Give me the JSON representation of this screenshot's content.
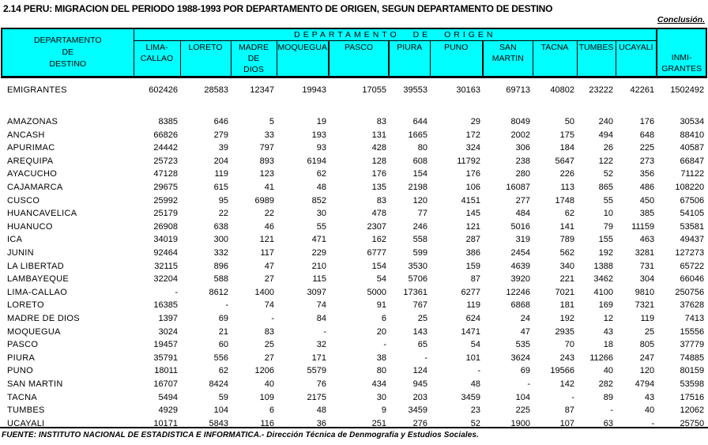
{
  "title": "2.14  PERU: MIGRACION DEL PERIODO 1988-1993 POR DEPARTAMENTO DE ORIGEN, SEGUN DEPARTAMENTO DE DESTINO",
  "continuation_note": "Conclusión.",
  "source_note": "FUENTE: INSTITUTO NACIONAL DE ESTADISTICA E INFORMATICA.- Dirección Técnica de Denmografia y Estudios Sociales.",
  "table": {
    "destination_header": [
      "DEPARTAMENTO",
      "DE",
      "DESTINO"
    ],
    "origin_group_label": "DEPARTAMENTO DE ORIGEN",
    "origin_columns": [
      "LIMA-\nCALLAO",
      "LORETO",
      "MADRE DE\nDIOS",
      "MOQUEGUA",
      "PASCO",
      "PIURA",
      "PUNO",
      "SAN\nMARTIN",
      "TACNA",
      "TUMBES",
      "UCAYALI"
    ],
    "inmigrantes_header": "INMI-\nGRANTES",
    "header_bg_color": "#00FFFF",
    "rows": [
      {
        "dest": "EMIGRANTES",
        "values": [
          "602426",
          "28583",
          "12347",
          "19943",
          "17055",
          "39553",
          "30163",
          "69713",
          "40802",
          "23222",
          "42261",
          "1502492"
        ]
      },
      {
        "dest": "AMAZONAS",
        "values": [
          "8385",
          "646",
          "5",
          "19",
          "83",
          "644",
          "29",
          "8049",
          "50",
          "240",
          "176",
          "30534"
        ]
      },
      {
        "dest": "ANCASH",
        "values": [
          "66826",
          "279",
          "33",
          "193",
          "131",
          "1665",
          "172",
          "2002",
          "175",
          "494",
          "648",
          "88410"
        ]
      },
      {
        "dest": "APURIMAC",
        "values": [
          "24442",
          "39",
          "797",
          "93",
          "428",
          "80",
          "324",
          "306",
          "184",
          "26",
          "225",
          "40587"
        ]
      },
      {
        "dest": "AREQUIPA",
        "values": [
          "25723",
          "204",
          "893",
          "6194",
          "128",
          "608",
          "11792",
          "238",
          "5647",
          "122",
          "273",
          "66847"
        ]
      },
      {
        "dest": "AYACUCHO",
        "values": [
          "47128",
          "119",
          "123",
          "62",
          "176",
          "154",
          "176",
          "280",
          "226",
          "52",
          "356",
          "71122"
        ]
      },
      {
        "dest": "CAJAMARCA",
        "values": [
          "29675",
          "615",
          "41",
          "48",
          "135",
          "2198",
          "106",
          "16087",
          "113",
          "865",
          "486",
          "108220"
        ]
      },
      {
        "dest": "CUSCO",
        "values": [
          "25992",
          "95",
          "6989",
          "852",
          "83",
          "120",
          "4151",
          "277",
          "1748",
          "55",
          "450",
          "67506"
        ]
      },
      {
        "dest": "HUANCAVELICA",
        "values": [
          "25179",
          "22",
          "22",
          "30",
          "478",
          "77",
          "145",
          "484",
          "62",
          "10",
          "385",
          "54105"
        ]
      },
      {
        "dest": "HUANUCO",
        "values": [
          "26908",
          "638",
          "46",
          "55",
          "2307",
          "246",
          "121",
          "5016",
          "141",
          "79",
          "11159",
          "53581"
        ]
      },
      {
        "dest": "ICA",
        "values": [
          "34019",
          "300",
          "121",
          "471",
          "162",
          "558",
          "287",
          "319",
          "789",
          "155",
          "463",
          "49437"
        ]
      },
      {
        "dest": "JUNIN",
        "values": [
          "92464",
          "332",
          "117",
          "229",
          "6777",
          "599",
          "386",
          "2454",
          "562",
          "192",
          "3281",
          "127273"
        ]
      },
      {
        "dest": "LA LIBERTAD",
        "values": [
          "32115",
          "896",
          "47",
          "210",
          "154",
          "3530",
          "159",
          "4639",
          "340",
          "1388",
          "731",
          "65722"
        ]
      },
      {
        "dest": "LAMBAYEQUE",
        "values": [
          "32204",
          "588",
          "27",
          "115",
          "54",
          "5706",
          "87",
          "3920",
          "221",
          "3462",
          "304",
          "66046"
        ]
      },
      {
        "dest": "LIMA-CALLAO",
        "values": [
          "-",
          "8612",
          "1400",
          "3097",
          "5000",
          "17361",
          "6277",
          "12246",
          "7021",
          "4100",
          "9810",
          "250756"
        ]
      },
      {
        "dest": "LORETO",
        "values": [
          "16385",
          "-",
          "74",
          "74",
          "91",
          "767",
          "119",
          "6868",
          "181",
          "169",
          "7321",
          "37628"
        ]
      },
      {
        "dest": "MADRE DE DIOS",
        "values": [
          "1397",
          "69",
          "-",
          "84",
          "6",
          "25",
          "624",
          "24",
          "192",
          "12",
          "119",
          "7413"
        ]
      },
      {
        "dest": "MOQUEGUA",
        "values": [
          "3024",
          "21",
          "83",
          "-",
          "20",
          "143",
          "1471",
          "47",
          "2935",
          "43",
          "25",
          "15556"
        ]
      },
      {
        "dest": "PASCO",
        "values": [
          "19457",
          "60",
          "25",
          "32",
          "-",
          "65",
          "54",
          "535",
          "70",
          "18",
          "805",
          "37779"
        ]
      },
      {
        "dest": "PIURA",
        "values": [
          "35791",
          "556",
          "27",
          "171",
          "38",
          "-",
          "101",
          "3624",
          "243",
          "11266",
          "247",
          "74885"
        ]
      },
      {
        "dest": "PUNO",
        "values": [
          "18011",
          "62",
          "1206",
          "5579",
          "80",
          "124",
          "-",
          "69",
          "19566",
          "40",
          "120",
          "80159"
        ]
      },
      {
        "dest": "SAN MARTIN",
        "values": [
          "16707",
          "8424",
          "40",
          "76",
          "434",
          "945",
          "48",
          "-",
          "142",
          "282",
          "4794",
          "53598"
        ]
      },
      {
        "dest": "TACNA",
        "values": [
          "5494",
          "59",
          "109",
          "2175",
          "30",
          "203",
          "3459",
          "104",
          "-",
          "89",
          "43",
          "17516"
        ]
      },
      {
        "dest": "TUMBES",
        "values": [
          "4929",
          "104",
          "6",
          "48",
          "9",
          "3459",
          "23",
          "225",
          "87",
          "-",
          "40",
          "12062"
        ]
      },
      {
        "dest": "UCAYALI",
        "values": [
          "10171",
          "5843",
          "116",
          "36",
          "251",
          "276",
          "52",
          "1900",
          "107",
          "63",
          "-",
          "25750"
        ]
      }
    ]
  }
}
